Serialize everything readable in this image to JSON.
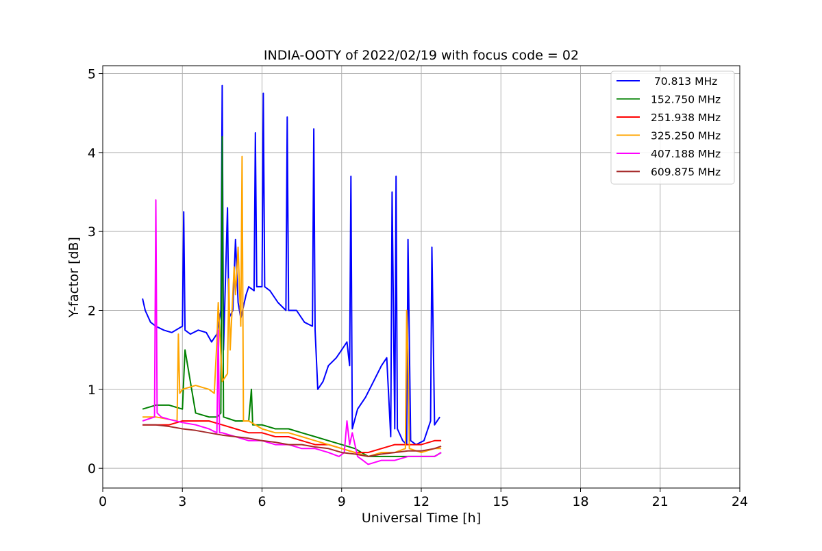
{
  "chart_data": {
    "type": "line",
    "title": "INDIA-OOTY of 2022/02/19 with focus code = 02",
    "xlabel": "Universal Time [h]",
    "ylabel": "Y-factor [dB]",
    "xlim": [
      0,
      24
    ],
    "ylim": [
      -0.25,
      5.1
    ],
    "xticks": [
      "0",
      "3",
      "6",
      "9",
      "12",
      "15",
      "18",
      "21",
      "24"
    ],
    "yticks": [
      "0",
      "1",
      "2",
      "3",
      "4",
      "5"
    ],
    "grid": true,
    "legend_position": "top-right",
    "series": [
      {
        "name": " 70.813 MHz",
        "color": "#0000ff",
        "x": [
          1.5,
          1.6,
          1.8,
          2.0,
          2.3,
          2.6,
          2.9,
          3.0,
          3.05,
          3.1,
          3.3,
          3.6,
          3.9,
          4.1,
          4.3,
          4.45,
          4.5,
          4.55,
          4.7,
          4.75,
          4.9,
          5.0,
          5.1,
          5.2,
          5.4,
          5.5,
          5.7,
          5.75,
          5.8,
          6.0,
          6.05,
          6.1,
          6.3,
          6.6,
          6.9,
          6.95,
          7.0,
          7.3,
          7.6,
          7.9,
          7.95,
          8.0,
          8.1,
          8.3,
          8.5,
          8.8,
          9.0,
          9.2,
          9.3,
          9.35,
          9.4,
          9.6,
          9.9,
          10.2,
          10.5,
          10.7,
          10.85,
          10.9,
          11.0,
          11.05,
          11.1,
          11.3,
          11.45,
          11.5,
          11.6,
          11.8,
          12.1,
          12.35,
          12.4,
          12.5,
          12.7
        ],
        "y": [
          2.15,
          2.0,
          1.85,
          1.8,
          1.75,
          1.72,
          1.78,
          1.8,
          3.25,
          1.75,
          1.7,
          1.75,
          1.72,
          1.6,
          1.7,
          2.0,
          4.85,
          1.5,
          3.3,
          1.9,
          2.0,
          2.9,
          2.1,
          1.9,
          2.2,
          2.3,
          2.25,
          4.25,
          2.3,
          2.3,
          4.75,
          2.3,
          2.25,
          2.1,
          2.0,
          4.45,
          2.0,
          2.0,
          1.85,
          1.8,
          4.3,
          1.75,
          1.0,
          1.1,
          1.3,
          1.4,
          1.5,
          1.6,
          1.3,
          3.7,
          0.5,
          0.75,
          0.9,
          1.1,
          1.3,
          1.4,
          0.4,
          3.5,
          0.5,
          3.7,
          0.5,
          0.35,
          0.3,
          2.9,
          0.35,
          0.3,
          0.35,
          0.6,
          2.8,
          0.55,
          0.65
        ]
      },
      {
        "name": "152.750 MHz",
        "color": "#008000",
        "x": [
          1.5,
          2.0,
          2.5,
          3.0,
          3.1,
          3.5,
          4.0,
          4.3,
          4.45,
          4.5,
          4.55,
          5.0,
          5.5,
          5.6,
          5.65,
          6.0,
          6.5,
          7.0,
          7.5,
          8.0,
          8.5,
          9.0,
          9.5,
          10.0,
          10.5,
          11.0,
          11.5,
          12.0,
          12.5,
          12.75
        ],
        "y": [
          0.75,
          0.8,
          0.8,
          0.75,
          1.5,
          0.7,
          0.65,
          0.65,
          0.7,
          4.2,
          0.65,
          0.6,
          0.6,
          1.0,
          0.55,
          0.55,
          0.5,
          0.5,
          0.45,
          0.4,
          0.35,
          0.3,
          0.25,
          0.15,
          0.15,
          0.15,
          0.15,
          0.15,
          0.15,
          0.2
        ]
      },
      {
        "name": "251.938 MHz",
        "color": "#ff0000",
        "x": [
          1.5,
          2.0,
          2.5,
          3.0,
          3.5,
          4.0,
          4.5,
          5.0,
          5.5,
          6.0,
          6.5,
          7.0,
          7.5,
          8.0,
          8.5,
          9.0,
          9.5,
          10.0,
          10.5,
          11.0,
          11.5,
          12.0,
          12.5,
          12.75
        ],
        "y": [
          0.55,
          0.55,
          0.55,
          0.6,
          0.6,
          0.6,
          0.55,
          0.5,
          0.45,
          0.45,
          0.4,
          0.4,
          0.35,
          0.3,
          0.3,
          0.25,
          0.2,
          0.2,
          0.25,
          0.3,
          0.3,
          0.3,
          0.35,
          0.35
        ]
      },
      {
        "name": "325.250 MHz",
        "color": "#ffa500",
        "x": [
          1.5,
          2.0,
          2.5,
          2.8,
          2.85,
          2.9,
          3.0,
          3.5,
          4.0,
          4.2,
          4.3,
          4.35,
          4.5,
          4.7,
          4.75,
          4.8,
          4.95,
          5.0,
          5.1,
          5.2,
          5.25,
          5.3,
          5.5,
          6.0,
          6.5,
          7.0,
          7.5,
          8.0,
          8.5,
          9.0,
          9.5,
          10.0,
          10.5,
          11.0,
          11.4,
          11.45,
          11.5,
          11.55,
          12.0,
          12.5,
          12.75
        ],
        "y": [
          0.65,
          0.65,
          0.62,
          0.6,
          1.7,
          0.95,
          1.0,
          1.05,
          1.0,
          0.95,
          1.6,
          2.1,
          1.1,
          1.2,
          2.4,
          1.5,
          2.55,
          2.2,
          2.8,
          1.8,
          3.95,
          0.6,
          0.6,
          0.5,
          0.45,
          0.45,
          0.4,
          0.35,
          0.3,
          0.25,
          0.2,
          0.15,
          0.2,
          0.2,
          0.25,
          2.0,
          1.4,
          0.25,
          0.2,
          0.25,
          0.25
        ]
      },
      {
        "name": "407.188 MHz",
        "color": "#ff00ff",
        "x": [
          1.5,
          1.95,
          2.0,
          2.05,
          2.2,
          2.5,
          3.0,
          3.5,
          4.0,
          4.3,
          4.35,
          4.4,
          4.5,
          5.0,
          5.5,
          6.0,
          6.5,
          7.0,
          7.5,
          8.0,
          8.5,
          8.9,
          9.1,
          9.2,
          9.3,
          9.4,
          9.6,
          9.8,
          10.0,
          10.5,
          11.0,
          11.5,
          12.0,
          12.5,
          12.75
        ],
        "y": [
          0.6,
          0.65,
          3.4,
          0.7,
          0.65,
          0.62,
          0.58,
          0.55,
          0.5,
          0.45,
          1.75,
          0.45,
          0.45,
          0.4,
          0.35,
          0.35,
          0.3,
          0.3,
          0.25,
          0.25,
          0.2,
          0.15,
          0.2,
          0.6,
          0.3,
          0.45,
          0.15,
          0.1,
          0.05,
          0.1,
          0.1,
          0.15,
          0.15,
          0.15,
          0.2
        ]
      },
      {
        "name": "609.875 MHz",
        "color": "#a52a2a",
        "x": [
          1.5,
          2.0,
          2.5,
          3.0,
          3.5,
          4.0,
          4.5,
          5.0,
          5.5,
          6.0,
          6.5,
          7.0,
          7.5,
          8.0,
          8.5,
          9.0,
          9.5,
          10.0,
          10.5,
          11.0,
          11.5,
          12.0,
          12.5,
          12.75
        ],
        "y": [
          0.55,
          0.55,
          0.53,
          0.5,
          0.48,
          0.45,
          0.42,
          0.4,
          0.38,
          0.35,
          0.33,
          0.3,
          0.3,
          0.27,
          0.25,
          0.2,
          0.18,
          0.15,
          0.18,
          0.2,
          0.22,
          0.22,
          0.25,
          0.28
        ]
      }
    ]
  }
}
